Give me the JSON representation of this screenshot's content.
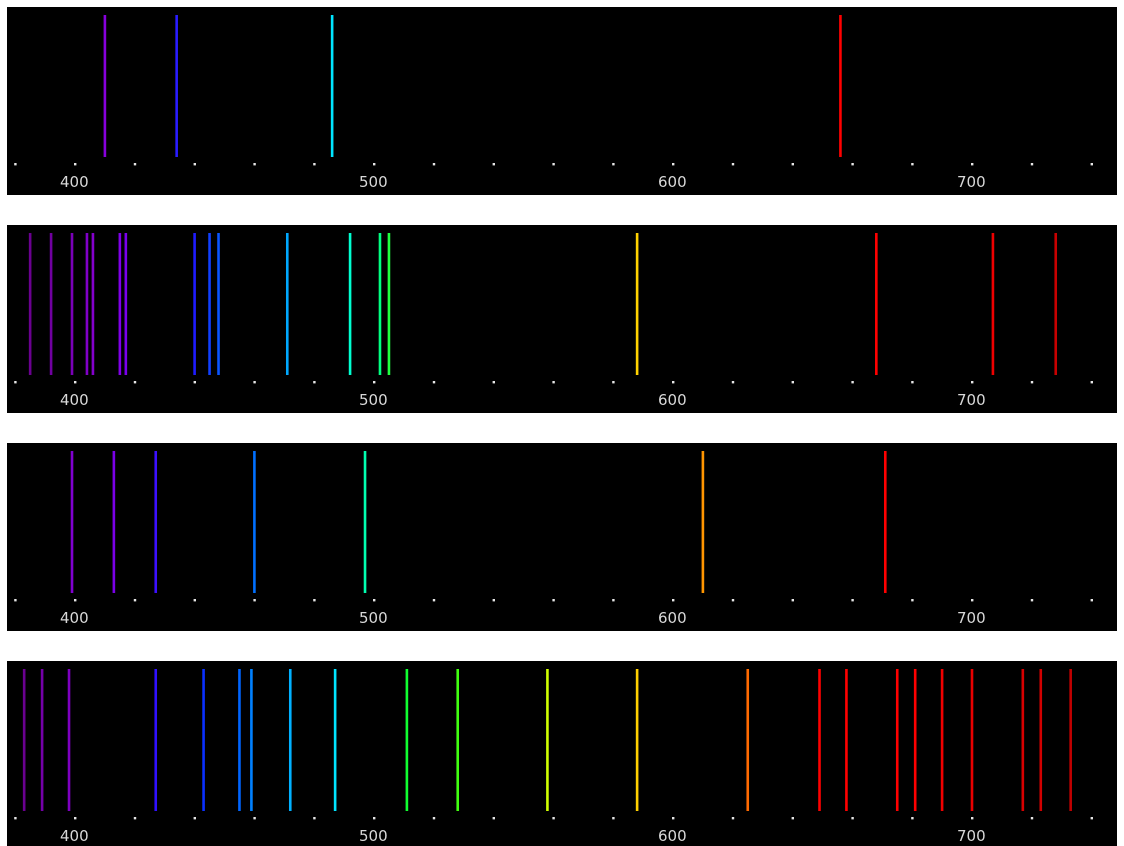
{
  "chart_data": [
    {
      "type": "emission-spectrum",
      "xlim": [
        380,
        750
      ],
      "x_ticks": [
        400,
        500,
        600,
        700
      ],
      "dot_spacing": 20,
      "background": "#000000",
      "lines": [
        {
          "x": 410,
          "color": "#8800dd"
        },
        {
          "x": 434,
          "color": "#2a1cff"
        },
        {
          "x": 486,
          "color": "#00e5ff"
        },
        {
          "x": 656,
          "color": "#ff0000"
        }
      ]
    },
    {
      "type": "emission-spectrum",
      "xlim": [
        380,
        750
      ],
      "x_ticks": [
        400,
        500,
        600,
        700
      ],
      "dot_spacing": 20,
      "background": "#000000",
      "lines": [
        {
          "x": 385,
          "color": "#6a0090"
        },
        {
          "x": 392,
          "color": "#7000a0"
        },
        {
          "x": 399,
          "color": "#7a00b8"
        },
        {
          "x": 404,
          "color": "#8000c8"
        },
        {
          "x": 406,
          "color": "#8400cc"
        },
        {
          "x": 415,
          "color": "#8000e8"
        },
        {
          "x": 417,
          "color": "#7a00ec"
        },
        {
          "x": 440,
          "color": "#1f1cff"
        },
        {
          "x": 445,
          "color": "#1040ff"
        },
        {
          "x": 448,
          "color": "#0a55ff"
        },
        {
          "x": 471,
          "color": "#00a8ff"
        },
        {
          "x": 492,
          "color": "#00ffd0"
        },
        {
          "x": 502,
          "color": "#00ff80"
        },
        {
          "x": 505,
          "color": "#20ff40"
        },
        {
          "x": 588,
          "color": "#ffd200"
        },
        {
          "x": 668,
          "color": "#ff0000"
        },
        {
          "x": 707,
          "color": "#ee0000"
        },
        {
          "x": 728,
          "color": "#c80000"
        }
      ]
    },
    {
      "type": "emission-spectrum",
      "xlim": [
        380,
        750
      ],
      "x_ticks": [
        400,
        500,
        600,
        700
      ],
      "dot_spacing": 20,
      "background": "#000000",
      "lines": [
        {
          "x": 399,
          "color": "#8000d0"
        },
        {
          "x": 413,
          "color": "#7a00e8"
        },
        {
          "x": 427,
          "color": "#3c10ff"
        },
        {
          "x": 460,
          "color": "#0070ff"
        },
        {
          "x": 497,
          "color": "#00ffb0"
        },
        {
          "x": 610,
          "color": "#ff9500"
        },
        {
          "x": 671,
          "color": "#ff0000"
        }
      ]
    },
    {
      "type": "emission-spectrum",
      "xlim": [
        380,
        750
      ],
      "x_ticks": [
        400,
        500,
        600,
        700
      ],
      "dot_spacing": 20,
      "background": "#000000",
      "lines": [
        {
          "x": 383,
          "color": "#6a0090"
        },
        {
          "x": 389,
          "color": "#7400a8"
        },
        {
          "x": 398,
          "color": "#7e00c0"
        },
        {
          "x": 427,
          "color": "#3010ff"
        },
        {
          "x": 443,
          "color": "#0a30ff"
        },
        {
          "x": 455,
          "color": "#0065ff"
        },
        {
          "x": 459,
          "color": "#0080ff"
        },
        {
          "x": 472,
          "color": "#00b0ff"
        },
        {
          "x": 487,
          "color": "#00e5ff"
        },
        {
          "x": 511,
          "color": "#10ff30"
        },
        {
          "x": 528,
          "color": "#40ff10"
        },
        {
          "x": 558,
          "color": "#d0ff00"
        },
        {
          "x": 588,
          "color": "#ffd000"
        },
        {
          "x": 625,
          "color": "#ff6a00"
        },
        {
          "x": 649,
          "color": "#ff0000"
        },
        {
          "x": 658,
          "color": "#ff0000"
        },
        {
          "x": 675,
          "color": "#ff0000"
        },
        {
          "x": 681,
          "color": "#ff0000"
        },
        {
          "x": 690,
          "color": "#f00000"
        },
        {
          "x": 700,
          "color": "#e80000"
        },
        {
          "x": 717,
          "color": "#d80000"
        },
        {
          "x": 723,
          "color": "#d00000"
        },
        {
          "x": 733,
          "color": "#c00000"
        }
      ]
    }
  ]
}
